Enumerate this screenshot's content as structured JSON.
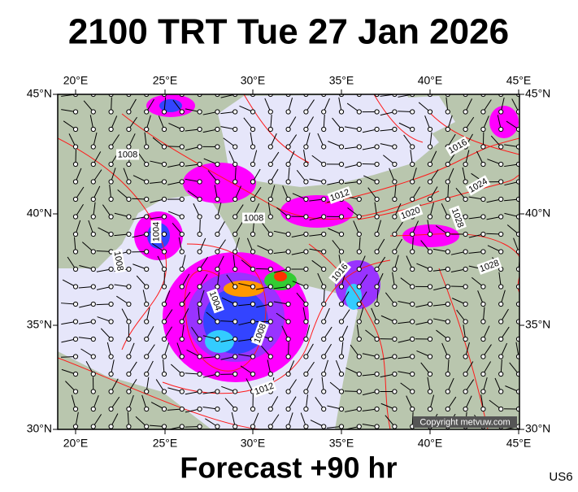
{
  "header": {
    "title": "2100 TRT Tue 27 Jan 2026"
  },
  "footer": {
    "forecast": "Forecast +90 hr",
    "code": "US6"
  },
  "map": {
    "copyright": "Copyright metvuw.com",
    "lon_labels": [
      "20°E",
      "25°E",
      "30°E",
      "35°E",
      "40°E",
      "45°E"
    ],
    "lat_labels": [
      "45°N",
      "40°N",
      "35°N",
      "30°N"
    ],
    "isobar_labels": [
      "1008",
      "1016",
      "1024",
      "1012",
      "1008",
      "1004",
      "1020",
      "1028",
      "1028",
      "1016",
      "1004",
      "1008",
      "1012",
      "1008"
    ]
  }
}
